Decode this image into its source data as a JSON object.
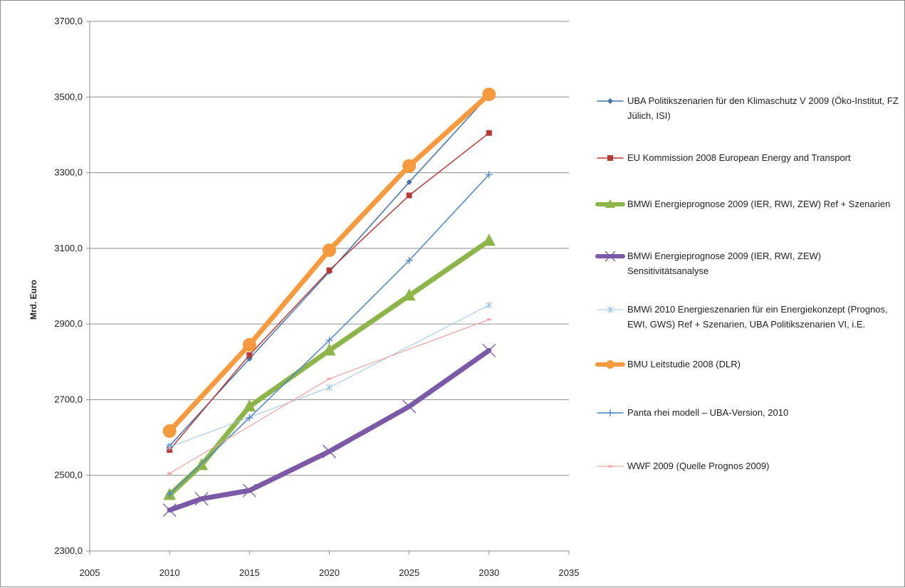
{
  "chart_data": {
    "type": "line",
    "title": "",
    "xlabel": "",
    "ylabel": "Mrd. Euro",
    "xlim": [
      2005,
      2035
    ],
    "ylim": [
      2300,
      3700
    ],
    "x_ticks": [
      "2005",
      "2010",
      "2015",
      "2020",
      "2025",
      "2030",
      "2035"
    ],
    "y_ticks": [
      "2300,0",
      "2500,0",
      "2700,0",
      "2900,0",
      "3100,0",
      "3300,0",
      "3500,0",
      "3700,0"
    ],
    "grid": "horizontal",
    "legend_position": "right",
    "series": [
      {
        "name": "UBA Politikszenarien für den Klimaschutz V 2009 (Öko-Institut, FZ Jülich, ISI)",
        "color": "#4472a8",
        "marker": "diamond",
        "width": 1.5,
        "points": [
          [
            2010,
            2578
          ],
          [
            2015,
            2808
          ],
          [
            2020,
            3038
          ],
          [
            2025,
            3275
          ],
          [
            2030,
            3505
          ]
        ]
      },
      {
        "name": "EU Kommission 2008 European Energy and Transport",
        "color": "#b33a37",
        "marker": "square",
        "width": 1.5,
        "points": [
          [
            2010,
            2567
          ],
          [
            2015,
            2818
          ],
          [
            2020,
            3042
          ],
          [
            2025,
            3240
          ],
          [
            2030,
            3405
          ]
        ]
      },
      {
        "name": "BMWi Energieprognose 2009 (IER, RWI, ZEW) Ref + Szenarien",
        "color": "#8db54a",
        "marker": "triangle",
        "width": 7,
        "points": [
          [
            2010,
            2448
          ],
          [
            2012,
            2527
          ],
          [
            2015,
            2682
          ],
          [
            2020,
            2830
          ],
          [
            2025,
            2975
          ],
          [
            2030,
            3120
          ]
        ]
      },
      {
        "name": "BMWi Energieprognose 2009 (IER, RWI, ZEW) Sensitivitätsanalyse",
        "color": "#7a5aa6",
        "marker": "x",
        "width": 7,
        "points": [
          [
            2010,
            2408
          ],
          [
            2012,
            2438
          ],
          [
            2015,
            2460
          ],
          [
            2020,
            2563
          ],
          [
            2025,
            2682
          ],
          [
            2030,
            2830
          ]
        ]
      },
      {
        "name": "BMWi 2010 Energieszenarien für ein Energiekonzept (Prognos, EWI, GWS) Ref + Szenarien, UBA Politikszenarien VI, i.E.",
        "color": "#9dc3e6",
        "marker": "star",
        "width": 1,
        "points": [
          [
            2010,
            2575
          ],
          [
            2020,
            2732
          ],
          [
            2030,
            2950
          ]
        ]
      },
      {
        "name": "BMU Leitstudie 2008 (DLR)",
        "color": "#f59a3e",
        "marker": "circle",
        "width": 7,
        "points": [
          [
            2010,
            2617
          ],
          [
            2015,
            2845
          ],
          [
            2020,
            3095
          ],
          [
            2025,
            3318
          ],
          [
            2030,
            3507
          ]
        ]
      },
      {
        "name": "Panta rhei modell – UBA-Version, 2010",
        "color": "#4a86c6",
        "marker": "plus",
        "width": 1.5,
        "points": [
          [
            2010,
            2450
          ],
          [
            2015,
            2652
          ],
          [
            2020,
            2857
          ],
          [
            2025,
            3068
          ],
          [
            2030,
            3295
          ]
        ]
      },
      {
        "name": "WWF 2009 (Quelle Prognos 2009)",
        "color": "#f0a3a1",
        "marker": "dash",
        "width": 1.2,
        "points": [
          [
            2010,
            2505
          ],
          [
            2020,
            2755
          ],
          [
            2030,
            2912
          ]
        ]
      }
    ]
  }
}
